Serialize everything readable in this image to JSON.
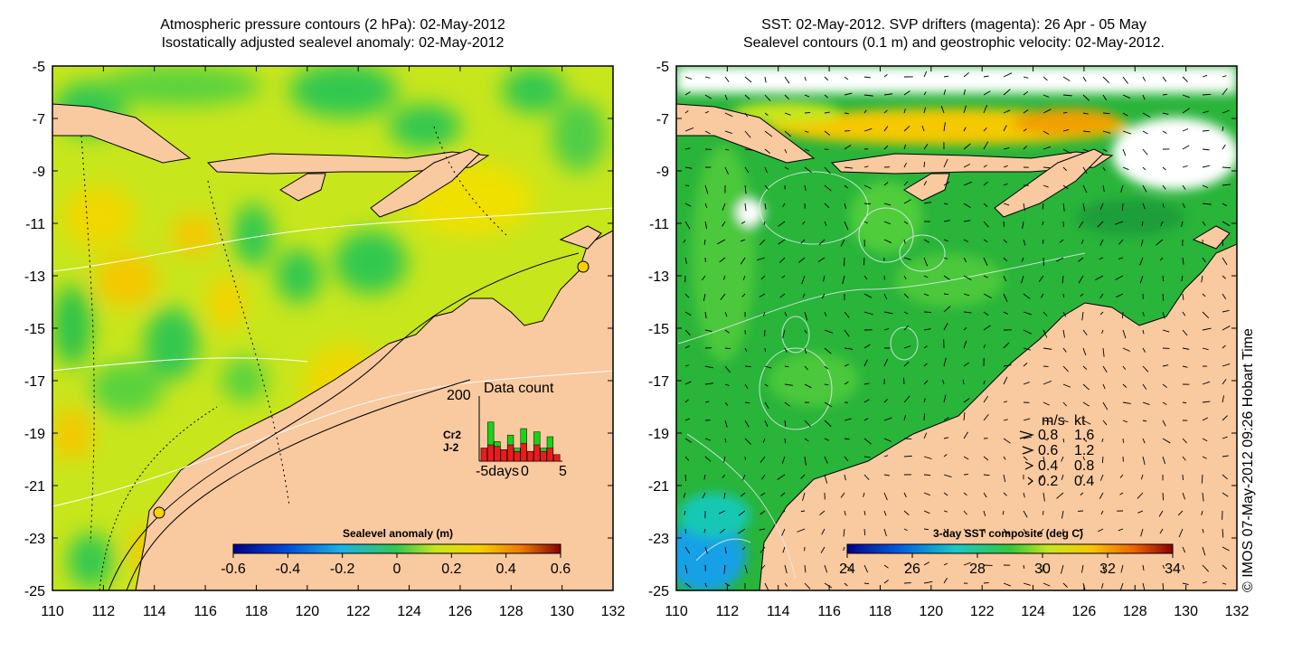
{
  "left_panel": {
    "title_line1": "Atmospheric pressure contours (2 hPa): 02-May-2012",
    "title_line2": "Isostatically adjusted sealevel anomaly: 02-May-2012",
    "colorbar_label": "Sealevel anomaly (m)",
    "colorbar_ticks": [
      "-0.6",
      "-0.4",
      "-0.2",
      "0",
      "0.2",
      "0.4",
      "0.6"
    ],
    "inset": {
      "title": "Data count",
      "y_label": "200",
      "series_labels": [
        "Cr2",
        "J-2"
      ],
      "x_labels": [
        "-5days",
        "0",
        "5"
      ],
      "series_colors": [
        "#19d219",
        "#e81c1c"
      ],
      "counts_cr2": [
        40,
        120,
        60,
        35,
        80,
        40,
        100,
        30,
        90,
        40,
        75,
        20
      ],
      "counts_j2": [
        40,
        50,
        45,
        35,
        50,
        30,
        55,
        30,
        50,
        30,
        40,
        20
      ]
    }
  },
  "right_panel": {
    "title_line1": "SST: 02-May-2012. SVP drifters (magenta): 26 Apr - 05 May",
    "title_line2": "Sealevel contours (0.1 m) and geostrophic velocity: 02-May-2012.",
    "colorbar_label": "3-day SST composite (deg C)",
    "colorbar_ticks": [
      "24",
      "26",
      "28",
      "30",
      "32",
      "34"
    ],
    "velocity_legend": {
      "header_ms": "m/s",
      "header_kt": "kt",
      "rows": [
        {
          "ms": "0.8",
          "kt": "1.6"
        },
        {
          "ms": "0.6",
          "kt": "1.2"
        },
        {
          "ms": "0.4",
          "kt": "0.8"
        },
        {
          "ms": "0.2",
          "kt": "0.4"
        }
      ]
    }
  },
  "axes": {
    "lon_ticks": [
      "110",
      "112",
      "114",
      "116",
      "118",
      "120",
      "122",
      "124",
      "126",
      "128",
      "130",
      "132"
    ],
    "lat_ticks": [
      "-5",
      "-7",
      "-9",
      "-11",
      "-13",
      "-15",
      "-17",
      "-19",
      "-21",
      "-23",
      "-25"
    ],
    "lon_range": [
      110,
      132
    ],
    "lat_range": [
      -25,
      -5
    ]
  },
  "colors": {
    "land": "#f9c9a0",
    "anomaly_base": "#c8e61c",
    "sst_base": "#29b43a"
  },
  "copyright": "© IMOS 07-May-2012 09:26 Hobart Time"
}
